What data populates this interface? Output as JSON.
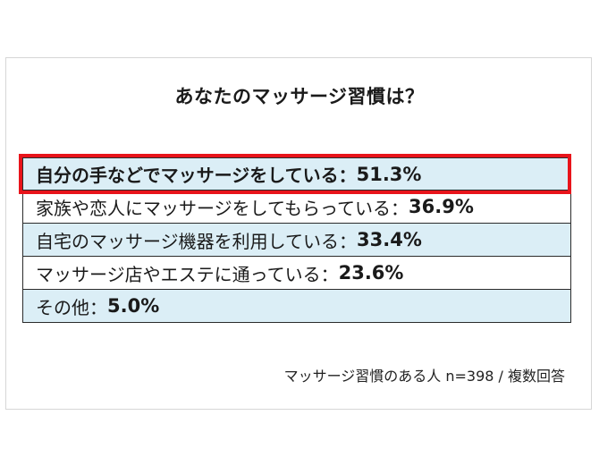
{
  "chart_data": {
    "type": "table",
    "title": "あなたのマッサージ習慣は？",
    "rows": [
      {
        "label": "自分の手などでマッサージをしている：",
        "value": "51.3%"
      },
      {
        "label": "家族や恋人にマッサージをしてもらっている：",
        "value": "36.9%"
      },
      {
        "label": "自宅のマッサージ機器を利用している：",
        "value": "33.4%"
      },
      {
        "label": "マッサージ店やエステに通っている：",
        "value": "23.6%"
      },
      {
        "label": "その他：",
        "value": "5.0%"
      }
    ],
    "note": "マッサージ習慣のある人 n=398 /  複数回答"
  },
  "colors": {
    "shaded_row": "#dbeef6",
    "highlight_border": "#e8141b"
  }
}
